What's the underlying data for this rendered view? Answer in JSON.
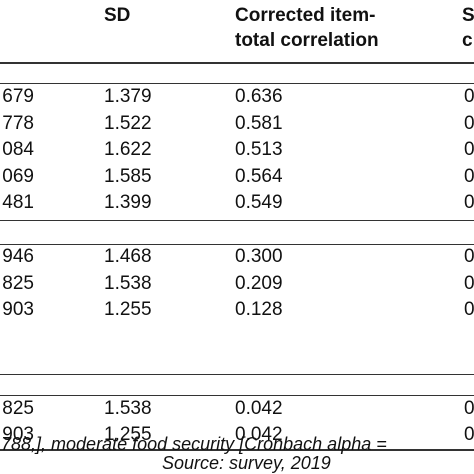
{
  "headers": {
    "sd": "SD",
    "corrected_line1": "Corrected item-",
    "corrected_line2": "total correlation",
    "next_line1": "S",
    "next_line2": "c"
  },
  "groups": [
    {
      "rows": [
        {
          "mean": "679",
          "sd": "1.379",
          "corr": "0.636",
          "next": "0"
        },
        {
          "mean": "778",
          "sd": "1.522",
          "corr": "0.581",
          "next": "0"
        },
        {
          "mean": "084",
          "sd": "1.622",
          "corr": "0.513",
          "next": "0"
        },
        {
          "mean": "069",
          "sd": "1.585",
          "corr": "0.564",
          "next": "0"
        },
        {
          "mean": "481",
          "sd": "1.399",
          "corr": "0.549",
          "next": "0"
        }
      ]
    },
    {
      "rows": [
        {
          "mean": "946",
          "sd": "1.468",
          "corr": "0.300",
          "next": "0"
        },
        {
          "mean": "825",
          "sd": "1.538",
          "corr": "0.209",
          "next": "0"
        },
        {
          "mean": "903",
          "sd": "1.255",
          "corr": "0.128",
          "next": "0"
        }
      ]
    },
    {
      "rows": [
        {
          "mean": "825",
          "sd": "1.538",
          "corr": "0.042",
          "next": "0"
        },
        {
          "mean": "903",
          "sd": "1.255",
          "corr": "0.042",
          "next": "0"
        }
      ]
    }
  ],
  "footer": {
    "note": ".788,], moderate food security [Cronbach alpha =",
    "source": "Source: survey, 2019"
  }
}
